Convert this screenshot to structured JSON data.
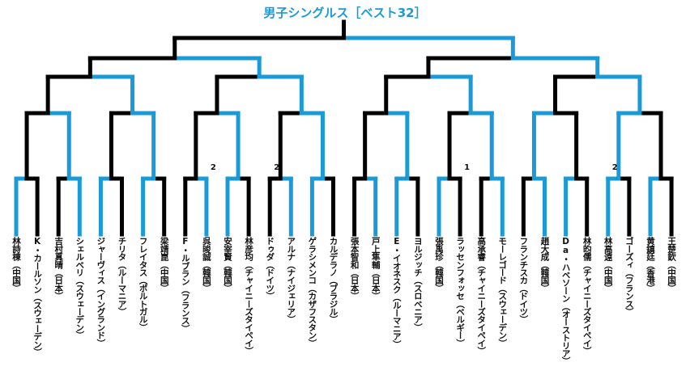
{
  "title": "男子シングルス［ベスト32］",
  "colors": {
    "line": "#000000",
    "advance": "#1a9bd7",
    "title": "#1a9bd7"
  },
  "players": [
    "林詩棟（中国）",
    "K・カールソン（スウェーデン）",
    "吉村真晴（日本）",
    "シェルベリ（スウェーデン）",
    "ジャーヴィス（イングランド）",
    "チリタ（ルーマニア）",
    "フレイタス（ポルトガル）",
    "梁靖崑（中国）",
    "F・ルブラン（フランス）",
    "呉晙誠（韓国）",
    "安宰賢（韓国）",
    "林彦均（チャイニーズタイペイ）",
    "ドゥダ（ドイツ）",
    "アルナ（ナイジェリア）",
    "ゲラシメンコ（カザフスタン）",
    "カルデラノ（ブラジル）",
    "張本智和（日本）",
    "戸上隼輔（日本）",
    "E・イオネスク（ルーマニア）",
    "ヨルジッチ（スロベニア）",
    "張禹珍（韓国）",
    "ラッセンフォッセ（ベルギー）",
    "高承睿（チャイニーズタイペイ）",
    "モーレゴード（スウェーデン）",
    "フランチスカ（ドイツ）",
    "趙大成（韓国）",
    "Da・ハベソーン（オーストリア）",
    "林昀儒（チャイニーズタイペイ）",
    "林高遠（中国）",
    "ゴーズィ（フランス）",
    "黄鎮廷（香港）",
    "王楚欽（中国）"
  ],
  "results": {
    "r32": [
      1,
      0,
      1,
      1,
      0,
      1,
      0,
      1,
      0,
      1,
      1,
      0,
      0,
      1,
      1,
      1
    ],
    "r16": [
      0,
      0,
      0,
      0,
      0,
      0,
      1,
      1
    ],
    "qf": [
      0,
      0,
      0,
      0
    ],
    "sf": [
      0,
      0
    ],
    "final": [
      0
    ]
  },
  "seeds": [
    {
      "slot": 9,
      "label": "2"
    },
    {
      "slot": 12,
      "label": "2"
    },
    {
      "slot": 21,
      "label": "1"
    },
    {
      "slot": 28,
      "label": "2"
    }
  ]
}
